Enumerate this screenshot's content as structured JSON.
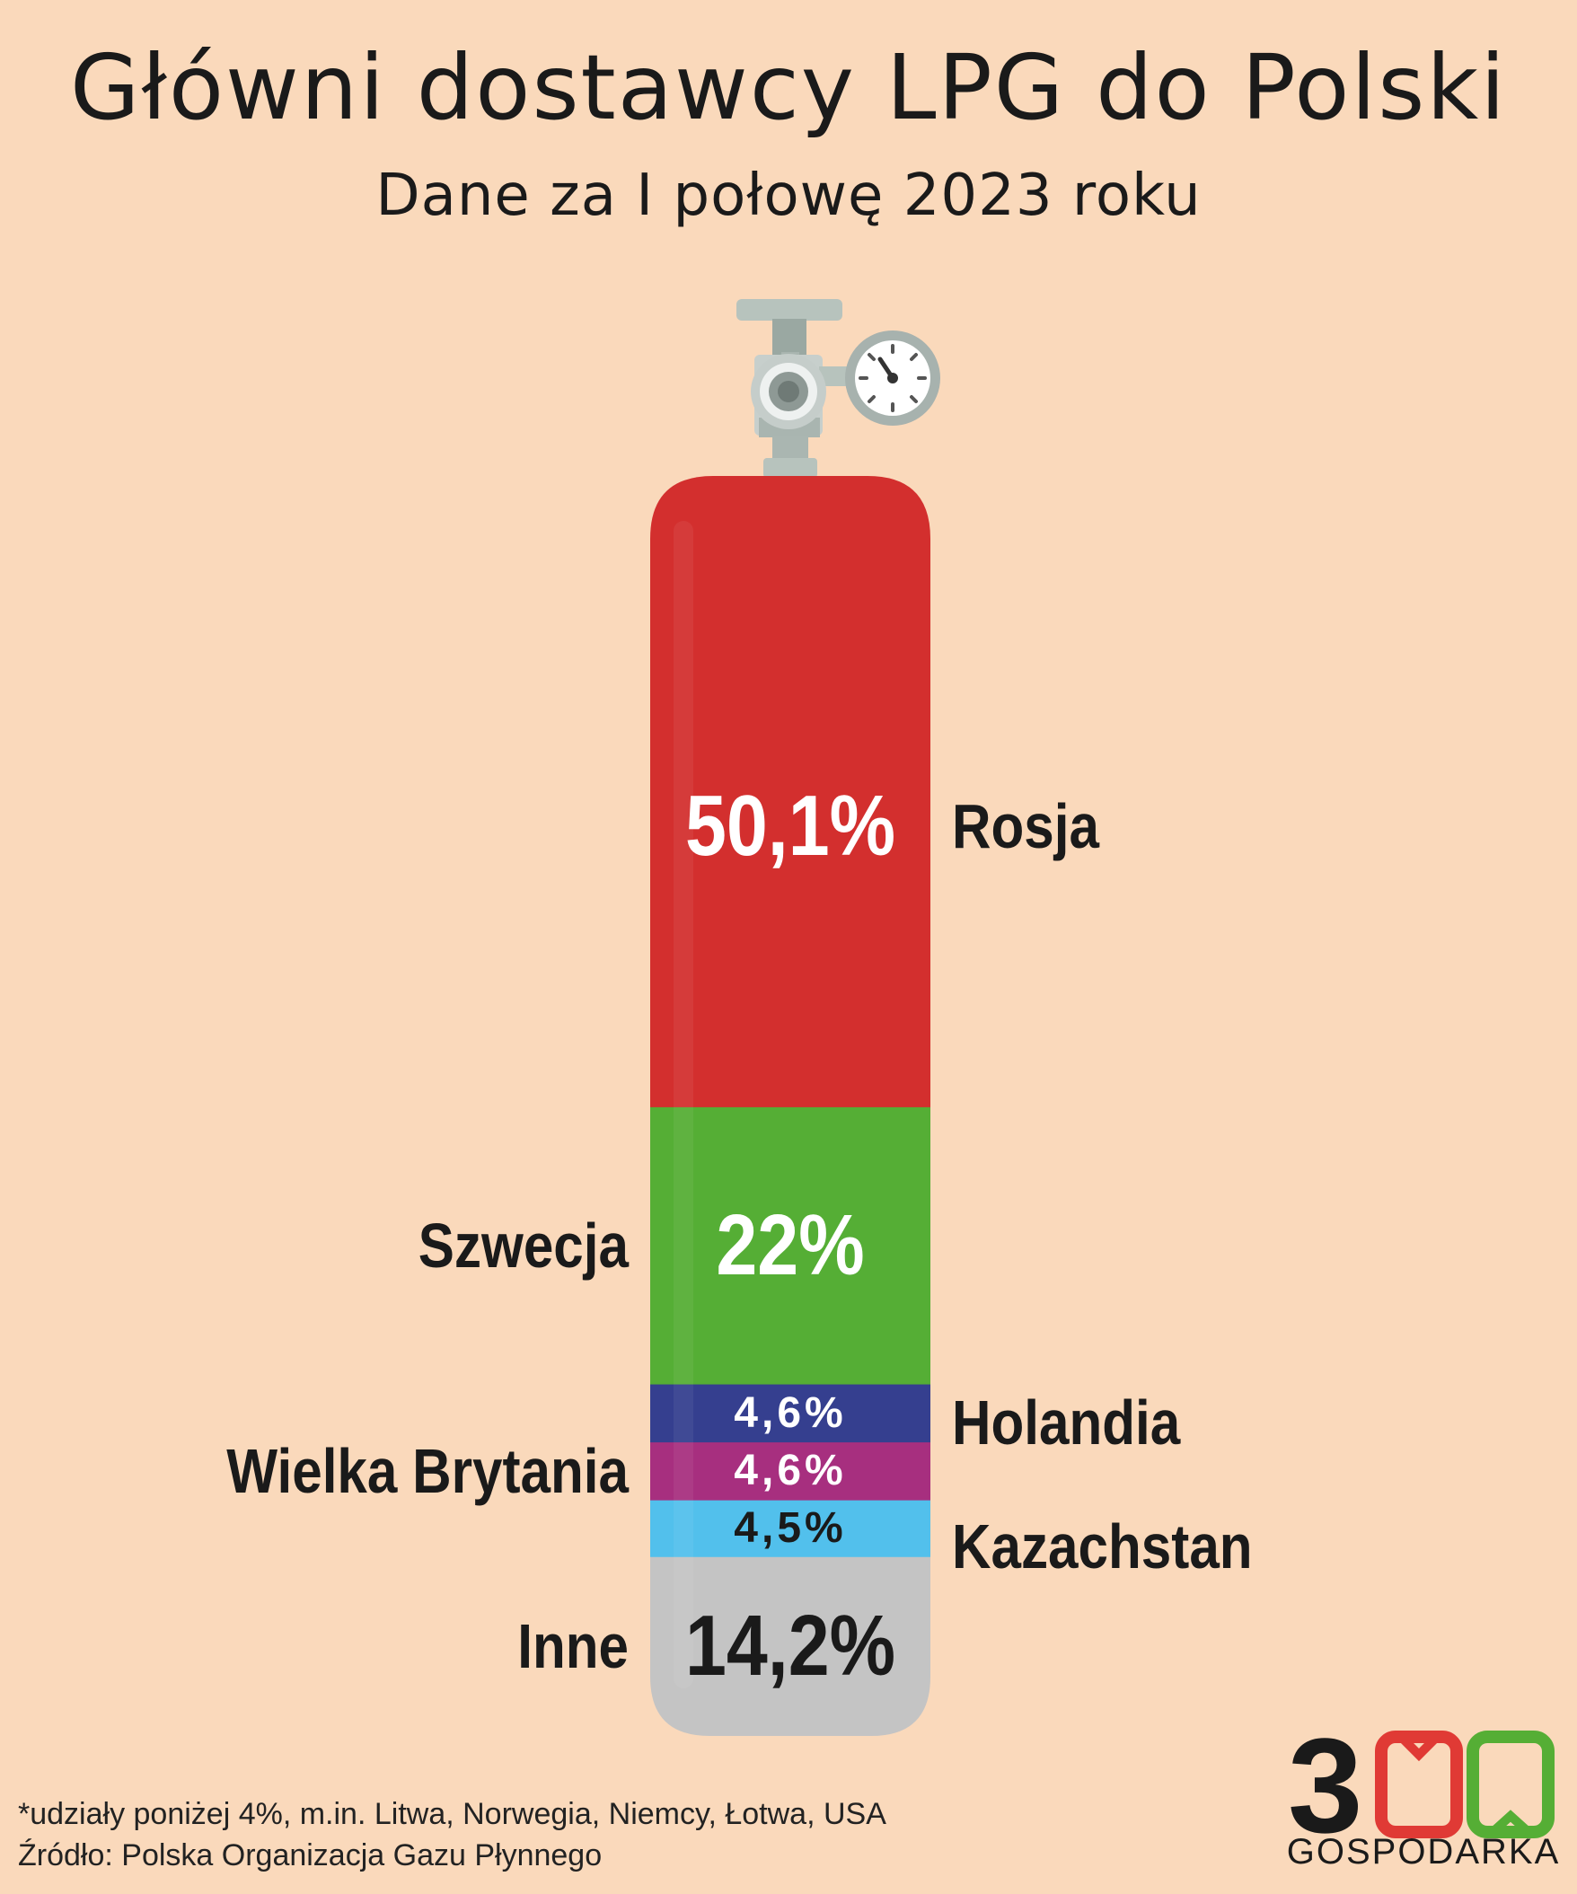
{
  "header": {
    "title": "Główni dostawcy LPG do Polski",
    "subtitle": "Dane za I połowę 2023 roku"
  },
  "chart_data": {
    "type": "bar",
    "title": "Główni dostawcy LPG do Polski",
    "subtitle": "Dane za I połowę 2023 roku",
    "orientation": "stacked-vertical-cylinder",
    "categories": [
      "Rosja",
      "Szwecja",
      "Holandia",
      "Wielka Brytania",
      "Kazachstan",
      "Inne"
    ],
    "values": [
      50.1,
      22,
      4.6,
      4.6,
      4.5,
      14.2
    ],
    "value_labels": [
      "50,1%",
      "22%",
      "4,6%",
      "4,6%",
      "4,5%",
      "14,2%"
    ],
    "unit": "%",
    "colors": [
      "#d32f2e",
      "#55ae35",
      "#353f8f",
      "#a72f7f",
      "#52c0ec",
      "#c4c4c4"
    ]
  },
  "footnotes": {
    "note": "*udziały poniżej 4%, m.in. Litwa, Norwegia, Niemcy, Łotwa, USA",
    "source": "Źródło: Polska Organizacja Gazu Płynnego"
  },
  "logo": {
    "number": "300",
    "name": "GOSPODARKA",
    "colors": [
      "#1a1a1a",
      "#e03a35",
      "#55ae35"
    ]
  }
}
